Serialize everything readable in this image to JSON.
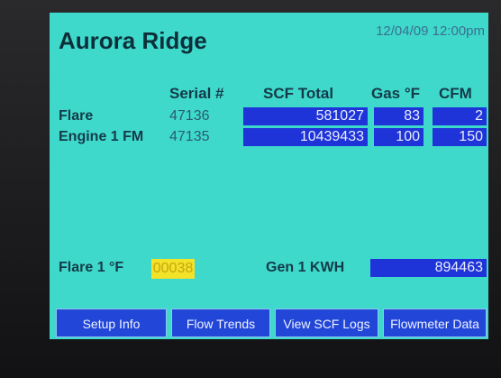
{
  "header": {
    "title": "Aurora Ridge",
    "datetime": "12/04/09 12:00pm"
  },
  "table": {
    "columns": [
      "Serial #",
      "SCF Total",
      "Gas °F",
      "CFM"
    ],
    "rows": [
      {
        "label": "Flare",
        "serial": 47136,
        "scf": 581027,
        "gas": 83,
        "cfm": 2
      },
      {
        "label": "Engine 1 FM",
        "serial": 47135,
        "scf": 10439433,
        "gas": 100,
        "cfm": 150
      }
    ]
  },
  "status": {
    "flare_label": "Flare 1 °F",
    "flare_value": "00038",
    "gen_label": "Gen 1 KWH",
    "gen_value": 894463
  },
  "buttons": [
    "Setup Info",
    "Flow Trends",
    "View SCF Logs",
    "Flowmeter Data"
  ]
}
